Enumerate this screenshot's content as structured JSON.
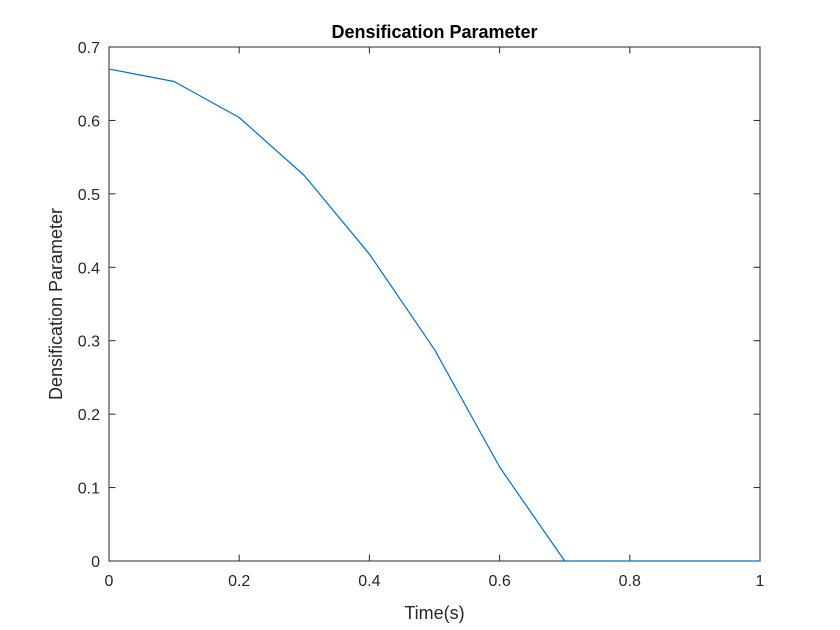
{
  "chart_data": {
    "type": "line",
    "title": "Densification Parameter",
    "xlabel": "Time(s)",
    "ylabel": "Densification Parameter",
    "xlim": [
      0,
      1
    ],
    "ylim": [
      0,
      0.7
    ],
    "x_ticks": [
      0,
      0.2,
      0.4,
      0.6,
      0.8,
      1
    ],
    "y_ticks": [
      0,
      0.1,
      0.2,
      0.3,
      0.4,
      0.5,
      0.6,
      0.7
    ],
    "x_tick_labels": [
      "0",
      "0.2",
      "0.4",
      "0.6",
      "0.8",
      "1"
    ],
    "y_tick_labels": [
      "0",
      "0.1",
      "0.2",
      "0.3",
      "0.4",
      "0.5",
      "0.6",
      "0.7"
    ],
    "grid": false,
    "series": [
      {
        "color": "#0072bd",
        "x": [
          0,
          0.1,
          0.2,
          0.3,
          0.4,
          0.5,
          0.6,
          0.7,
          0.8,
          0.9,
          1.0
        ],
        "y": [
          0.67,
          0.653,
          0.604,
          0.525,
          0.418,
          0.288,
          0.128,
          0,
          0,
          0,
          0
        ]
      }
    ]
  }
}
